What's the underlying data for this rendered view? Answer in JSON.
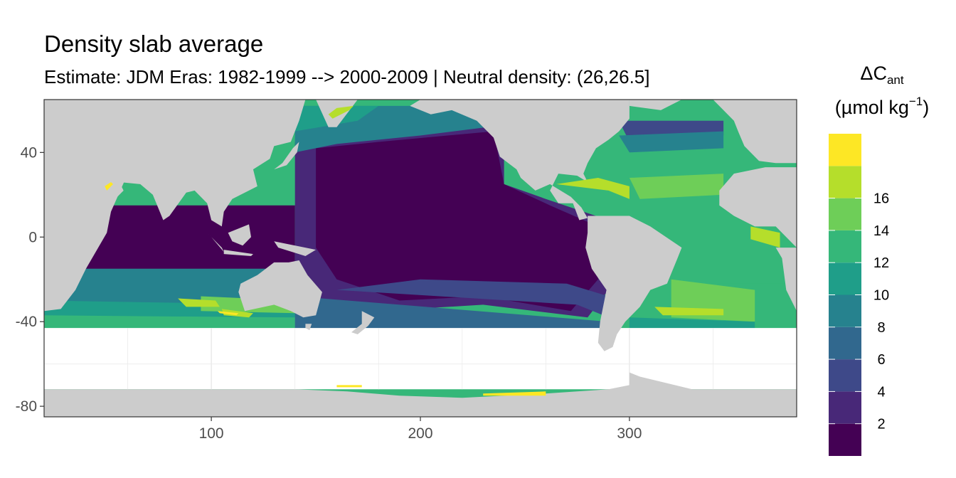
{
  "title": "Density slab average",
  "subtitle": "Estimate: JDM Eras: 1982-1999 --> 2000-2009 | Neutral density: (26,26.5]",
  "legend": {
    "symbol": "ΔC",
    "subscript": "ant",
    "unit_prefix": "(µmol kg",
    "unit_exp": "−1",
    "unit_suffix": ")",
    "breaks": [
      2,
      4,
      6,
      8,
      10,
      12,
      14,
      16
    ],
    "break_labels": [
      "2",
      "4",
      "6",
      "8",
      "10",
      "12",
      "14",
      "16"
    ],
    "bins": [
      {
        "lo": 0,
        "hi": 2,
        "color": "#440154"
      },
      {
        "lo": 2,
        "hi": 4,
        "color": "#482878"
      },
      {
        "lo": 4,
        "hi": 6,
        "color": "#3e4989"
      },
      {
        "lo": 6,
        "hi": 8,
        "color": "#31688e"
      },
      {
        "lo": 8,
        "hi": 10,
        "color": "#26828e"
      },
      {
        "lo": 10,
        "hi": 12,
        "color": "#1f9e89"
      },
      {
        "lo": 12,
        "hi": 14,
        "color": "#35b779"
      },
      {
        "lo": 14,
        "hi": 16,
        "color": "#6ece58"
      },
      {
        "lo": 16,
        "hi": 18,
        "color": "#b5de2b"
      },
      {
        "lo": 18,
        "hi": 20,
        "color": "#fde725"
      }
    ]
  },
  "axes": {
    "x_ticks": [
      100,
      200,
      300
    ],
    "x_tick_labels": [
      "100",
      "200",
      "300"
    ],
    "x_range": [
      20,
      380
    ],
    "y_ticks": [
      40,
      0,
      -40,
      -80
    ],
    "y_tick_labels": [
      "40",
      "0",
      "-40",
      "-80"
    ],
    "y_range": [
      -85,
      65
    ]
  },
  "colors": {
    "land": "#cccccc",
    "no_data": "#ffffff",
    "grid": "#ebebeb",
    "panel_border": "#333333"
  }
}
